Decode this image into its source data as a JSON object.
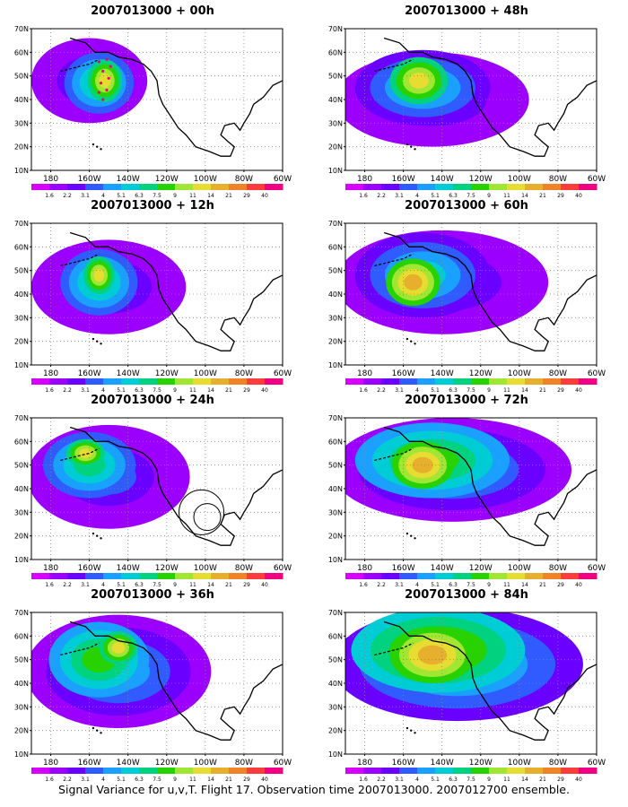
{
  "color_scale": {
    "labels": [
      "1.6",
      "2.2",
      "3.1",
      "4",
      "5.1",
      "6.3",
      "7.5",
      "9",
      "11",
      "14",
      "21",
      "29",
      "40"
    ],
    "colors": [
      "#d600ff",
      "#9b00ff",
      "#6a00ff",
      "#2f5bff",
      "#1aa0ff",
      "#00ccd6",
      "#00d27f",
      "#28d200",
      "#a0e632",
      "#e6dc32",
      "#e6af2d",
      "#f08228",
      "#fa3c3c",
      "#f00082"
    ]
  },
  "map": {
    "lat_labels": [
      "70N",
      "60N",
      "50N",
      "40N",
      "30N",
      "20N",
      "10N"
    ],
    "lon_labels": [
      "180",
      "160W",
      "140W",
      "120W",
      "100W",
      "80W",
      "60W"
    ],
    "ocean_color": "#ffffff",
    "coast_color": "#000000"
  },
  "panels": [
    {
      "title": "2007013000 + 00h",
      "lead": "00h"
    },
    {
      "title": "2007013000 + 48h",
      "lead": "48h"
    },
    {
      "title": "2007013000 + 12h",
      "lead": "12h"
    },
    {
      "title": "2007013000 + 60h",
      "lead": "60h"
    },
    {
      "title": "2007013000 + 24h",
      "lead": "24h"
    },
    {
      "title": "2007013000 + 72h",
      "lead": "72h"
    },
    {
      "title": "2007013000 + 36h",
      "lead": "36h"
    },
    {
      "title": "2007013000 + 84h",
      "lead": "84h"
    }
  ],
  "footer": "Signal Variance for u,v,T. Flight 17. Observation time 2007013000. 2007012700 ensemble."
}
